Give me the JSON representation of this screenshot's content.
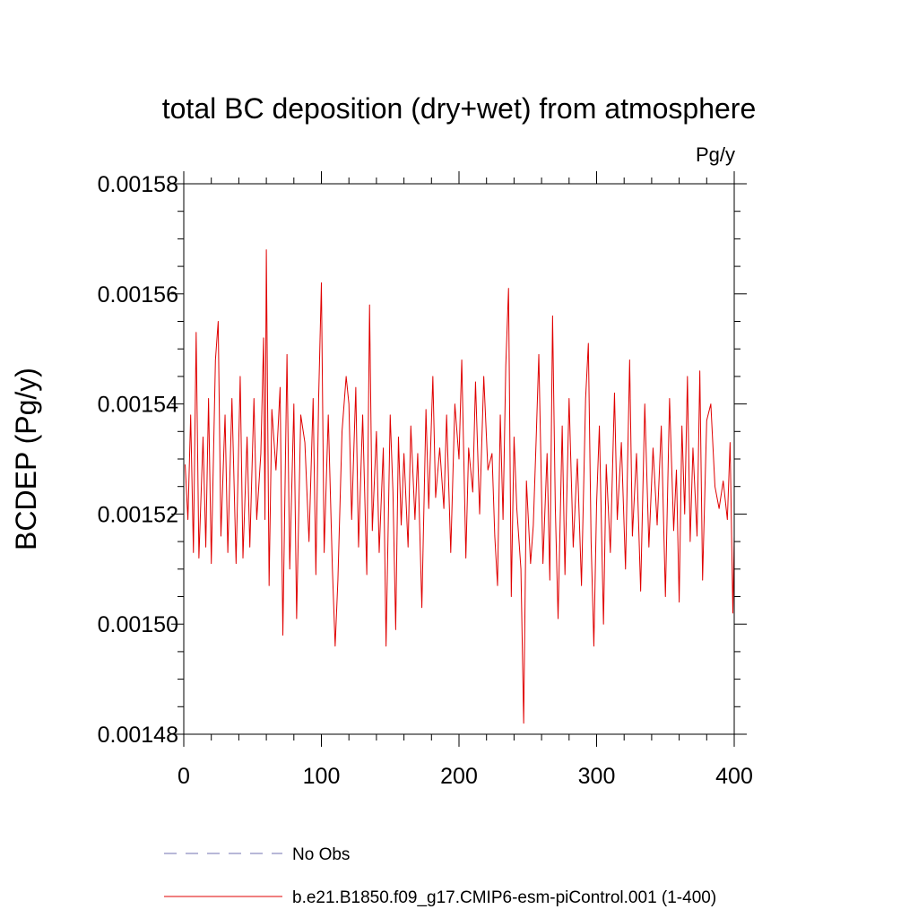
{
  "chart_data": {
    "type": "line",
    "title": "total BC deposition (dry+wet) from atmosphere",
    "units": "Pg/y",
    "ylabel": "BCDEP  (Pg/y)",
    "xlabel": "",
    "xlim": [
      0,
      400
    ],
    "ylim": [
      0.00148,
      0.00158
    ],
    "x_ticks": [
      0,
      100,
      200,
      300,
      400
    ],
    "x_tick_labels": [
      "0",
      "100",
      "200",
      "300",
      "400"
    ],
    "y_ticks": [
      0.00148,
      0.0015,
      0.00152,
      0.00154,
      0.00156,
      0.00158
    ],
    "y_tick_labels": [
      "0.00148",
      "0.00150",
      "0.00152",
      "0.00154",
      "0.00156",
      "0.00158"
    ],
    "grid": false,
    "legend_position": "bottom",
    "legend": [
      {
        "label": "No Obs",
        "color": "#7070b0",
        "style": "dashed"
      },
      {
        "label": "b.e21.B1850.f09_g17.CMIP6-esm-piControl.001 (1-400)",
        "color": "#e00000",
        "style": "solid"
      }
    ],
    "series": [
      {
        "color": "#e00000",
        "x_start": 1,
        "x_step": 1,
        "anchors": [
          [
            1,
            0.001529
          ],
          [
            3,
            0.001519
          ],
          [
            5,
            0.001538
          ],
          [
            7,
            0.001513
          ],
          [
            9,
            0.001553
          ],
          [
            11,
            0.001512
          ],
          [
            14,
            0.001534
          ],
          [
            16,
            0.001514
          ],
          [
            18,
            0.001541
          ],
          [
            20,
            0.001511
          ],
          [
            23,
            0.001548
          ],
          [
            25,
            0.001555
          ],
          [
            27,
            0.001516
          ],
          [
            30,
            0.001538
          ],
          [
            32,
            0.001513
          ],
          [
            35,
            0.001541
          ],
          [
            38,
            0.001511
          ],
          [
            41,
            0.001545
          ],
          [
            43,
            0.001512
          ],
          [
            46,
            0.001534
          ],
          [
            48,
            0.001514
          ],
          [
            51,
            0.001541
          ],
          [
            53,
            0.001519
          ],
          [
            56,
            0.001531
          ],
          [
            58,
            0.001552
          ],
          [
            59,
            0.001519
          ],
          [
            60,
            0.001568
          ],
          [
            62,
            0.001507
          ],
          [
            64,
            0.001539
          ],
          [
            67,
            0.001528
          ],
          [
            70,
            0.001543
          ],
          [
            72,
            0.001498
          ],
          [
            75,
            0.001549
          ],
          [
            77,
            0.00151
          ],
          [
            80,
            0.00154
          ],
          [
            82,
            0.001501
          ],
          [
            85,
            0.001538
          ],
          [
            88,
            0.001533
          ],
          [
            91,
            0.001515
          ],
          [
            94,
            0.001541
          ],
          [
            96,
            0.001509
          ],
          [
            98,
            0.001541
          ],
          [
            100,
            0.001562
          ],
          [
            102,
            0.001513
          ],
          [
            105,
            0.001538
          ],
          [
            108,
            0.00151
          ],
          [
            110,
            0.001496
          ],
          [
            112,
            0.001508
          ],
          [
            115,
            0.001535
          ],
          [
            118,
            0.001545
          ],
          [
            120,
            0.00154
          ],
          [
            122,
            0.001519
          ],
          [
            125,
            0.001543
          ],
          [
            127,
            0.001514
          ],
          [
            130,
            0.001538
          ],
          [
            133,
            0.001509
          ],
          [
            135,
            0.001558
          ],
          [
            137,
            0.001517
          ],
          [
            140,
            0.001535
          ],
          [
            142,
            0.001513
          ],
          [
            145,
            0.001532
          ],
          [
            147,
            0.001496
          ],
          [
            150,
            0.001538
          ],
          [
            152,
            0.001524
          ],
          [
            154,
            0.001499
          ],
          [
            156,
            0.001534
          ],
          [
            158,
            0.001518
          ],
          [
            160,
            0.001531
          ],
          [
            163,
            0.001514
          ],
          [
            165,
            0.001536
          ],
          [
            168,
            0.001519
          ],
          [
            170,
            0.001531
          ],
          [
            173,
            0.001503
          ],
          [
            176,
            0.001539
          ],
          [
            178,
            0.001521
          ],
          [
            181,
            0.001545
          ],
          [
            183,
            0.001523
          ],
          [
            186,
            0.001532
          ],
          [
            189,
            0.001521
          ],
          [
            191,
            0.001538
          ],
          [
            194,
            0.001513
          ],
          [
            197,
            0.00154
          ],
          [
            200,
            0.00153
          ],
          [
            202,
            0.001548
          ],
          [
            205,
            0.001512
          ],
          [
            207,
            0.001532
          ],
          [
            210,
            0.001524
          ],
          [
            212,
            0.001544
          ],
          [
            215,
            0.00152
          ],
          [
            218,
            0.001545
          ],
          [
            221,
            0.001528
          ],
          [
            224,
            0.001531
          ],
          [
            226,
            0.001516
          ],
          [
            228,
            0.001507
          ],
          [
            230,
            0.001538
          ],
          [
            232,
            0.001519
          ],
          [
            234,
            0.001547
          ],
          [
            236,
            0.001561
          ],
          [
            238,
            0.001505
          ],
          [
            240,
            0.001534
          ],
          [
            242,
            0.001521
          ],
          [
            245,
            0.00151
          ],
          [
            247,
            0.001482
          ],
          [
            249,
            0.001526
          ],
          [
            252,
            0.001511
          ],
          [
            254,
            0.001518
          ],
          [
            256,
            0.001533
          ],
          [
            258,
            0.001549
          ],
          [
            261,
            0.001511
          ],
          [
            264,
            0.001531
          ],
          [
            266,
            0.001508
          ],
          [
            268,
            0.001556
          ],
          [
            270,
            0.001521
          ],
          [
            272,
            0.001501
          ],
          [
            275,
            0.001536
          ],
          [
            277,
            0.001509
          ],
          [
            280,
            0.001541
          ],
          [
            283,
            0.001514
          ],
          [
            286,
            0.00153
          ],
          [
            289,
            0.001507
          ],
          [
            292,
            0.001541
          ],
          [
            294,
            0.001551
          ],
          [
            296,
            0.001515
          ],
          [
            298,
            0.001496
          ],
          [
            300,
            0.001522
          ],
          [
            302,
            0.001536
          ],
          [
            305,
            0.0015
          ],
          [
            307,
            0.001529
          ],
          [
            310,
            0.001513
          ],
          [
            313,
            0.001542
          ],
          [
            315,
            0.001519
          ],
          [
            318,
            0.001533
          ],
          [
            321,
            0.00151
          ],
          [
            324,
            0.001548
          ],
          [
            326,
            0.001516
          ],
          [
            329,
            0.001531
          ],
          [
            332,
            0.001506
          ],
          [
            335,
            0.00154
          ],
          [
            338,
            0.001514
          ],
          [
            341,
            0.001532
          ],
          [
            344,
            0.001518
          ],
          [
            347,
            0.001536
          ],
          [
            350,
            0.001505
          ],
          [
            353,
            0.001541
          ],
          [
            356,
            0.001517
          ],
          [
            358,
            0.001528
          ],
          [
            360,
            0.001504
          ],
          [
            362,
            0.001536
          ],
          [
            364,
            0.00152
          ],
          [
            366,
            0.001545
          ],
          [
            368,
            0.001515
          ],
          [
            370,
            0.001532
          ],
          [
            373,
            0.001516
          ],
          [
            375,
            0.001546
          ],
          [
            377,
            0.001508
          ],
          [
            380,
            0.001537
          ],
          [
            383,
            0.00154
          ],
          [
            386,
            0.001525
          ],
          [
            389,
            0.001521
          ],
          [
            392,
            0.001526
          ],
          [
            395,
            0.001519
          ],
          [
            397,
            0.001533
          ],
          [
            399,
            0.001502
          ],
          [
            400,
            0.001516
          ]
        ]
      }
    ]
  }
}
